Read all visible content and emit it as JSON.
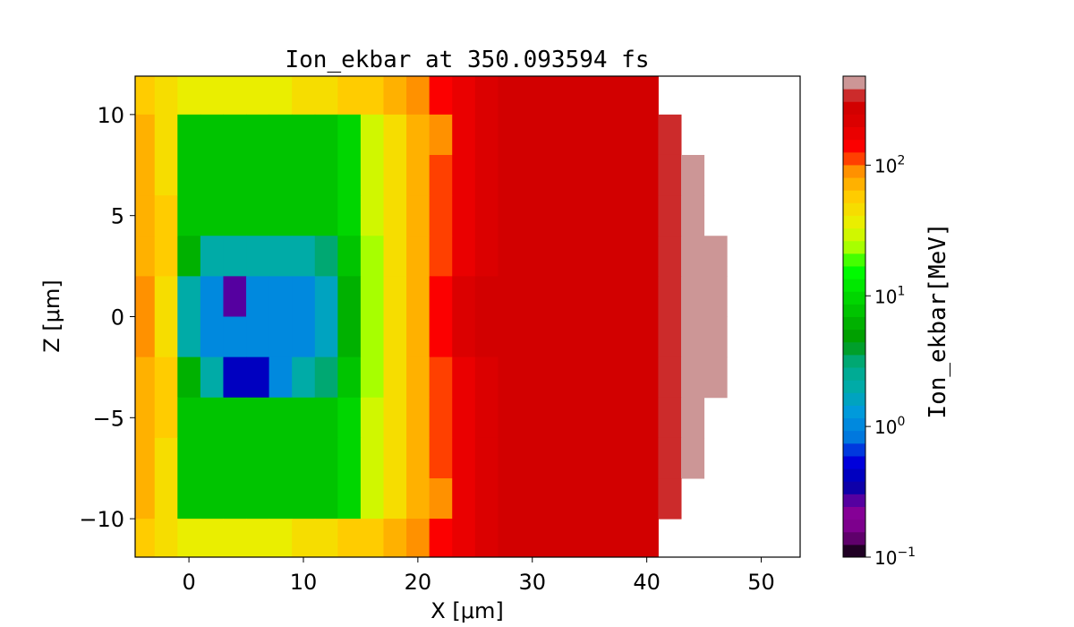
{
  "chart_data": {
    "type": "heatmap",
    "title": "Ion_ekbar at 350.093594 fs",
    "xlabel": "X  [μm]",
    "ylabel": "Z  [μm]",
    "xlim": [
      -4.7,
      53.4
    ],
    "ylim": [
      -11.9,
      11.9
    ],
    "xticks": [
      0,
      10,
      20,
      30,
      40,
      50
    ],
    "yticks": [
      -10,
      -5,
      0,
      5,
      10
    ],
    "xtick_labels": [
      "0",
      "10",
      "20",
      "30",
      "40",
      "50"
    ],
    "ytick_labels": [
      "−10",
      "−5",
      "0",
      "5",
      "10"
    ],
    "colormap": "nipy_spectral",
    "colorbar": {
      "label": "Ion_ekbar[MeV]",
      "scale": "log",
      "range": [
        0.1,
        480
      ],
      "levels": 38,
      "ticks": [
        {
          "value": 0.1,
          "base": "10",
          "exp": "−1"
        },
        {
          "value": 1,
          "base": "10",
          "exp": "0"
        },
        {
          "value": 10,
          "base": "10",
          "exp": "1"
        },
        {
          "value": 100,
          "base": "10",
          "exp": "2"
        }
      ]
    },
    "grid": false,
    "cell_x": [
      -4,
      -2,
      0,
      2,
      4,
      6,
      8,
      10,
      12,
      14,
      16,
      18,
      20,
      22,
      24,
      26,
      28,
      30,
      32,
      34,
      36,
      38,
      40,
      42,
      44,
      46,
      48,
      50,
      52
    ],
    "cell_z": [
      11,
      9,
      7,
      5,
      3,
      1,
      -1,
      -3,
      -5,
      -7,
      -9,
      -11
    ],
    "values": [
      [
        60,
        45,
        40,
        40,
        40,
        40,
        40,
        45,
        50,
        55,
        60,
        70,
        90,
        130,
        180,
        200,
        250,
        280,
        300,
        300,
        300,
        300,
        300,
        null,
        null,
        null,
        null,
        null,
        null
      ],
      [
        70,
        50,
        8,
        8,
        8,
        8,
        8,
        8,
        8,
        10,
        30,
        45,
        70,
        100,
        160,
        200,
        250,
        300,
        300,
        300,
        300,
        300,
        300,
        350,
        null,
        null,
        null,
        null,
        null
      ],
      [
        70,
        50,
        8,
        8,
        8,
        8,
        8,
        8,
        8,
        10,
        30,
        45,
        70,
        110,
        170,
        220,
        260,
        300,
        300,
        300,
        300,
        300,
        300,
        350,
        400,
        null,
        null,
        null,
        null
      ],
      [
        75,
        55,
        8,
        7,
        7,
        7,
        7,
        7,
        7,
        10,
        28,
        45,
        70,
        110,
        180,
        230,
        270,
        300,
        300,
        300,
        300,
        300,
        300,
        350,
        400,
        null,
        null,
        null,
        null
      ],
      [
        80,
        55,
        6,
        2,
        2,
        2,
        2,
        2,
        3,
        8,
        25,
        45,
        75,
        120,
        190,
        240,
        280,
        300,
        300,
        300,
        300,
        300,
        300,
        350,
        450,
        400,
        null,
        null,
        null
      ],
      [
        85,
        45,
        2,
        1,
        0.3,
        1,
        1,
        1,
        1.5,
        6,
        25,
        45,
        80,
        130,
        200,
        250,
        300,
        300,
        300,
        300,
        300,
        300,
        300,
        350,
        450,
        450,
        null,
        null,
        null
      ],
      [
        85,
        45,
        2,
        1,
        1,
        1,
        1,
        1,
        1.5,
        6,
        25,
        45,
        80,
        130,
        200,
        250,
        300,
        300,
        300,
        300,
        300,
        300,
        300,
        350,
        450,
        450,
        null,
        null,
        null
      ],
      [
        80,
        55,
        6,
        2,
        0.4,
        0.4,
        1,
        2,
        3,
        8,
        25,
        45,
        75,
        120,
        190,
        240,
        280,
        300,
        300,
        300,
        300,
        300,
        300,
        350,
        450,
        400,
        null,
        null,
        null
      ],
      [
        75,
        55,
        8,
        7,
        7,
        7,
        7,
        7,
        7,
        10,
        28,
        45,
        70,
        110,
        180,
        230,
        270,
        300,
        300,
        300,
        300,
        300,
        300,
        350,
        400,
        null,
        null,
        null,
        null
      ],
      [
        70,
        50,
        8,
        8,
        8,
        8,
        8,
        8,
        8,
        10,
        30,
        45,
        70,
        110,
        170,
        220,
        260,
        300,
        300,
        300,
        300,
        300,
        300,
        350,
        400,
        null,
        null,
        null,
        null
      ],
      [
        70,
        50,
        8,
        8,
        8,
        8,
        8,
        8,
        8,
        10,
        30,
        45,
        70,
        100,
        160,
        200,
        250,
        300,
        300,
        300,
        300,
        300,
        300,
        350,
        null,
        null,
        null,
        null,
        null
      ],
      [
        60,
        45,
        40,
        40,
        40,
        40,
        40,
        45,
        50,
        55,
        60,
        70,
        90,
        130,
        180,
        200,
        250,
        280,
        300,
        300,
        300,
        300,
        300,
        null,
        null,
        null,
        null,
        null,
        null
      ]
    ]
  }
}
